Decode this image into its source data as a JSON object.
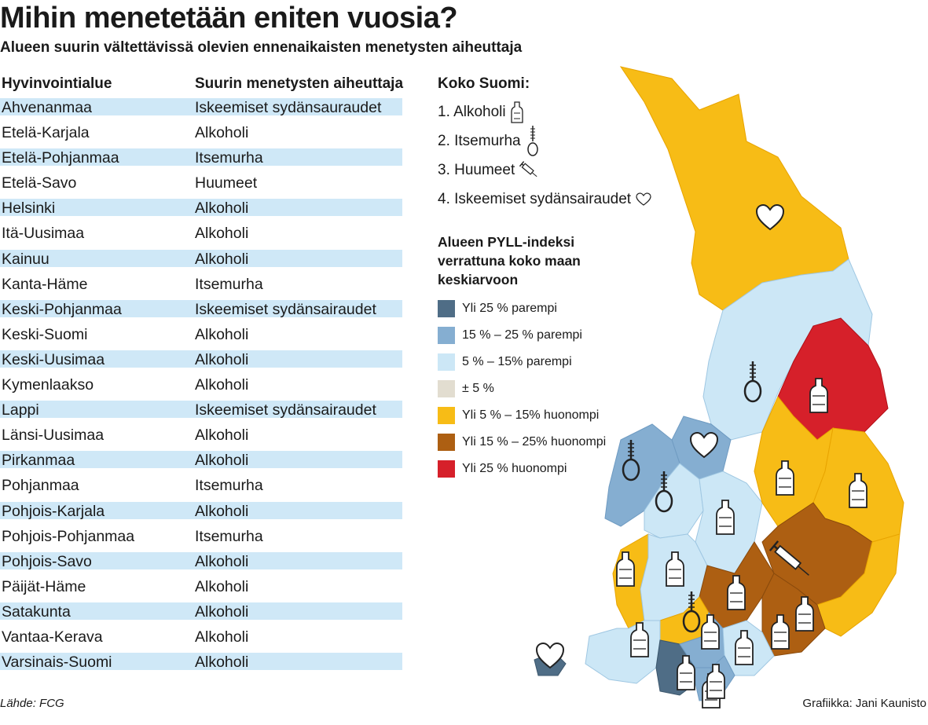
{
  "title": "Mihin menetetään eniten vuosia?",
  "subtitle": "Alueen suurin vältettävissä olevien ennenaikaisten menetysten aiheuttaja",
  "table": {
    "col1": "Hyvinvointialue",
    "col2": "Suurin menetysten aiheuttaja",
    "rows": [
      {
        "region": "Ahvenanmaa",
        "cause": "Iskeemiset sydänsauraudet"
      },
      {
        "region": "Etelä-Karjala",
        "cause": "Alkoholi"
      },
      {
        "region": "Etelä-Pohjanmaa",
        "cause": "Itsemurha"
      },
      {
        "region": "Etelä-Savo",
        "cause": "Huumeet"
      },
      {
        "region": "Helsinki",
        "cause": "Alkoholi"
      },
      {
        "region": "Itä-Uusimaa",
        "cause": "Alkoholi"
      },
      {
        "region": "Kainuu",
        "cause": "Alkoholi"
      },
      {
        "region": "Kanta-Häme",
        "cause": "Itsemurha"
      },
      {
        "region": "Keski-Pohjanmaa",
        "cause": "Iskeemiset sydänsairaudet"
      },
      {
        "region": "Keski-Suomi",
        "cause": "Alkoholi"
      },
      {
        "region": "Keski-Uusimaa",
        "cause": "Alkoholi"
      },
      {
        "region": "Kymenlaakso",
        "cause": "Alkoholi"
      },
      {
        "region": "Lappi",
        "cause": "Iskeemiset  sydänsairaudet"
      },
      {
        "region": "Länsi-Uusimaa",
        "cause": "Alkoholi"
      },
      {
        "region": "Pirkanmaa",
        "cause": "Alkoholi"
      },
      {
        "region": "Pohjanmaa",
        "cause": "Itsemurha"
      },
      {
        "region": "Pohjois-Karjala",
        "cause": "Alkoholi"
      },
      {
        "region": "Pohjois-Pohjanmaa",
        "cause": "Itsemurha"
      },
      {
        "region": "Pohjois-Savo",
        "cause": "Alkoholi"
      },
      {
        "region": "Päijät-Häme",
        "cause": "Alkoholi"
      },
      {
        "region": "Satakunta",
        "cause": "Alkoholi"
      },
      {
        "region": "Vantaa-Kerava",
        "cause": "Alkoholi"
      },
      {
        "region": "Varsinais-Suomi",
        "cause": "Alkoholi"
      }
    ]
  },
  "koko_suomi": {
    "heading": "Koko Suomi:",
    "items": [
      {
        "label": "1. Alkoholi",
        "icon": "bottle-icon"
      },
      {
        "label": "2. Itsemurha",
        "icon": "noose-icon"
      },
      {
        "label": "3. Huumeet",
        "icon": "syringe-icon"
      },
      {
        "label": "4. Iskeemiset sydänsairaudet",
        "icon": "heart-icon"
      }
    ]
  },
  "pyll_legend": {
    "heading_1": "Alueen PYLL-indeksi",
    "heading_2": "verrattuna koko maan",
    "heading_3": "keskiarvoon",
    "items": [
      {
        "label": "Yli 25 % parempi",
        "color": "#4f6d86"
      },
      {
        "label": "15 % – 25 % parempi",
        "color": "#85aed1"
      },
      {
        "label": "5 % – 15% parempi",
        "color": "#cce7f6"
      },
      {
        "label": "± 5 %",
        "color": "#e2ddd0"
      },
      {
        "label": "Yli 5 % – 15% huonompi",
        "color": "#f7bc16"
      },
      {
        "label": "Yli 15 % – 25% huonompi",
        "color": "#ad5f12"
      },
      {
        "label": "Yli 25 % huonompi",
        "color": "#d6202a"
      }
    ]
  },
  "source": "Lähde: FCG",
  "credit": "Grafiikka: Jani Kaunisto"
}
